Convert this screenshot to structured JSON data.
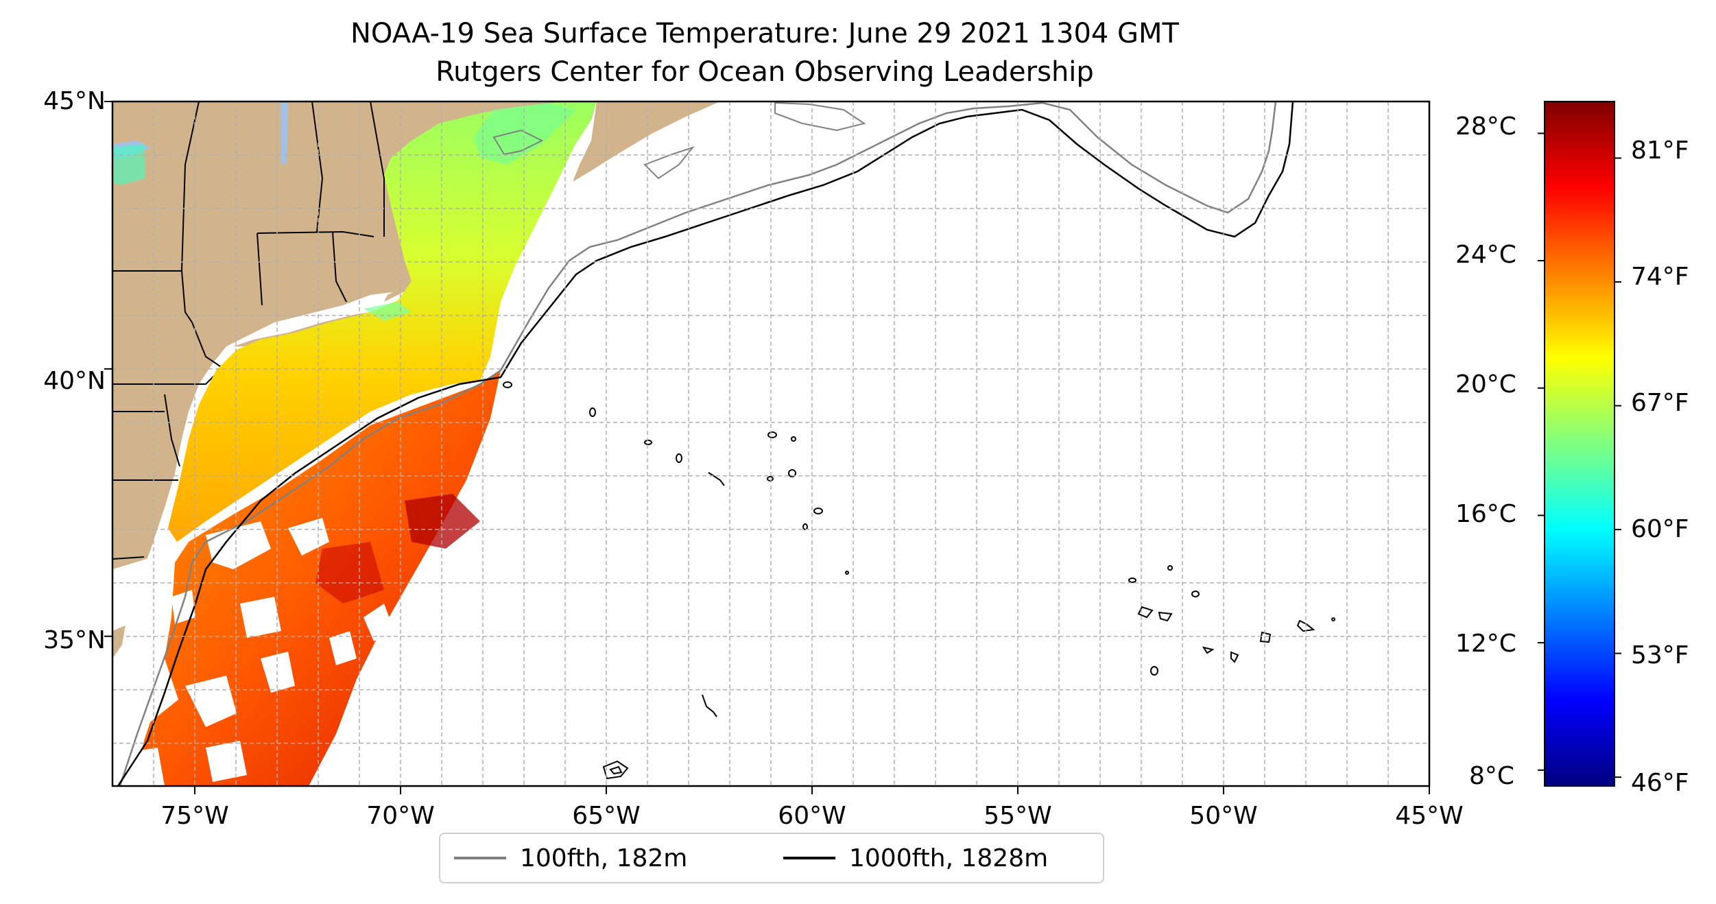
{
  "title": {
    "line1": "NOAA-19 Sea Surface Temperature: June 29 2021 1304 GMT",
    "line2": "Rutgers Center for Ocean Observing Leadership"
  },
  "map": {
    "lon_range": [
      -77,
      -45
    ],
    "lat_range": [
      32.2,
      45
    ],
    "lat_ticks": [
      "45°N",
      "40°N",
      "35°N"
    ],
    "lon_ticks": [
      "75°W",
      "70°W",
      "65°W",
      "60°W",
      "55°W",
      "50°W",
      "45°W"
    ],
    "grid": true,
    "land_color": "#d2b48c",
    "lake_color": "#a3c1e6"
  },
  "colorbar": {
    "colormap": "jet",
    "celsius_ticks": [
      "28°C",
      "24°C",
      "20°C",
      "16°C",
      "12°C",
      "8°C"
    ],
    "fahrenheit_ticks": [
      "81°F",
      "74°F",
      "67°F",
      "60°F",
      "53°F",
      "46°F"
    ]
  },
  "legend": {
    "items": [
      {
        "label": "100fth, 182m",
        "color": "#808080"
      },
      {
        "label": "1000fth, 1828m",
        "color": "#000000"
      }
    ]
  }
}
